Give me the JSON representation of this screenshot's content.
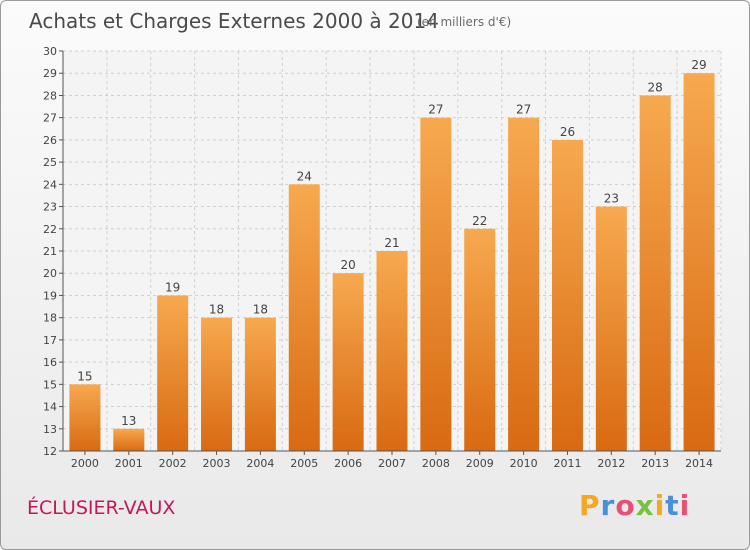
{
  "header": {
    "title": "Achats et Charges Externes 2000 à 2014",
    "subtitle": "(en milliers d'€)"
  },
  "footer": {
    "place": "ÉCLUSIER-VAUX",
    "logo_letters": [
      "P",
      "r",
      "o",
      "x",
      "i",
      "t",
      "i"
    ],
    "logo_colors": [
      "#f5a623",
      "#4a90d9",
      "#e94e77",
      "#7ac142",
      "#f5a623",
      "#4a90d9",
      "#e94e77"
    ]
  },
  "colors": {
    "bar_top": "#f7a94f",
    "bar_bottom": "#d86a12",
    "grid": "#d0d0d0",
    "axis": "#555555"
  },
  "chart_data": {
    "type": "bar",
    "title": "Achats et Charges Externes 2000 à 2014",
    "subtitle": "(en milliers d'€)",
    "xlabel": "",
    "ylabel": "",
    "categories": [
      "2000",
      "2001",
      "2002",
      "2003",
      "2004",
      "2005",
      "2006",
      "2007",
      "2008",
      "2009",
      "2010",
      "2011",
      "2012",
      "2013",
      "2014"
    ],
    "values": [
      15,
      13,
      19,
      18,
      18,
      24,
      20,
      21,
      27,
      22,
      27,
      26,
      23,
      28,
      29
    ],
    "ylim": [
      12,
      30
    ],
    "yticks": [
      12,
      13,
      14,
      15,
      16,
      17,
      18,
      19,
      20,
      21,
      22,
      23,
      24,
      25,
      26,
      27,
      28,
      29,
      30
    ],
    "grid": true,
    "data_labels": true
  }
}
